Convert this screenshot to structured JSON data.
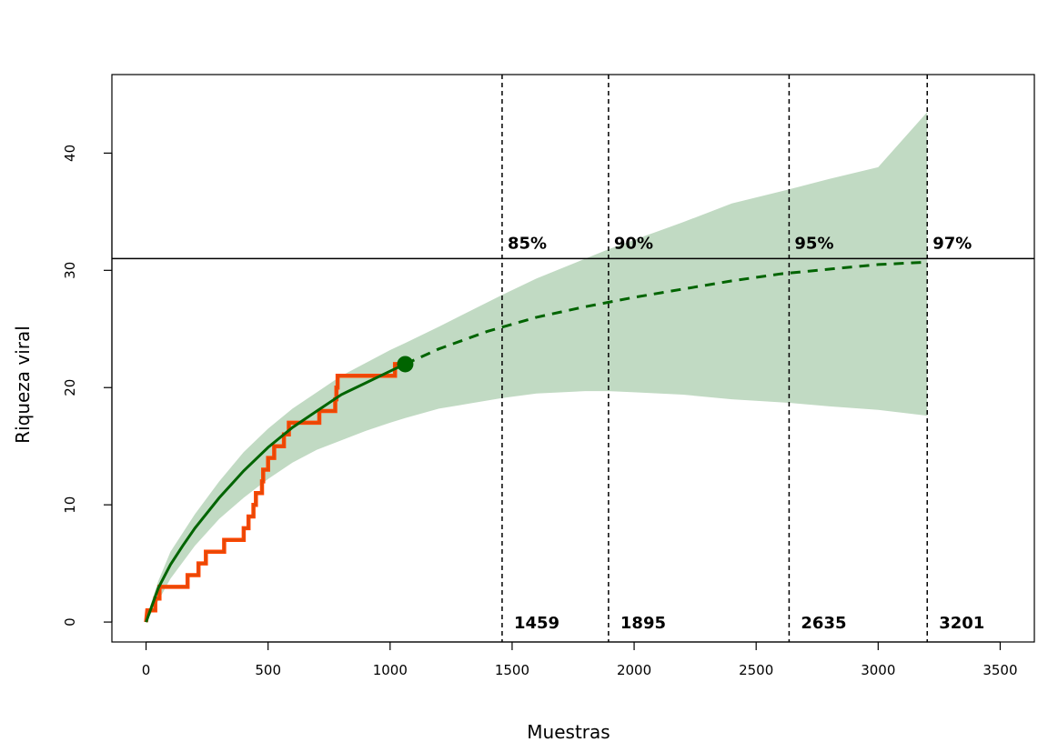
{
  "chart_data": {
    "type": "line",
    "title": "",
    "xlabel": "Muestras",
    "ylabel": "Riqueza viral",
    "xlim": [
      -140,
      3640
    ],
    "ylim": [
      -1.7,
      46.7
    ],
    "x_ticks": [
      0,
      500,
      1000,
      1500,
      2000,
      2500,
      3000,
      3500
    ],
    "y_ticks": [
      0,
      10,
      20,
      30,
      40
    ],
    "grid": false,
    "legend": "none",
    "colors": {
      "band": "#c1dac3",
      "curve": "#006400",
      "observed": "#ff4500",
      "observed_inner": "#c45010"
    },
    "observed_steps": [
      [
        0,
        0
      ],
      [
        5,
        1
      ],
      [
        38,
        1
      ],
      [
        38,
        2
      ],
      [
        55,
        2
      ],
      [
        55,
        3
      ],
      [
        170,
        3
      ],
      [
        170,
        4
      ],
      [
        215,
        4
      ],
      [
        215,
        5
      ],
      [
        245,
        5
      ],
      [
        245,
        6
      ],
      [
        320,
        6
      ],
      [
        320,
        7
      ],
      [
        400,
        7
      ],
      [
        400,
        8
      ],
      [
        420,
        8
      ],
      [
        420,
        9
      ],
      [
        440,
        9
      ],
      [
        440,
        10
      ],
      [
        450,
        10
      ],
      [
        450,
        11
      ],
      [
        475,
        11
      ],
      [
        475,
        12
      ],
      [
        480,
        12
      ],
      [
        480,
        13
      ],
      [
        500,
        13
      ],
      [
        500,
        14
      ],
      [
        525,
        14
      ],
      [
        525,
        15
      ],
      [
        565,
        15
      ],
      [
        565,
        16
      ],
      [
        585,
        16
      ],
      [
        585,
        17
      ],
      [
        710,
        17
      ],
      [
        710,
        18
      ],
      [
        775,
        18
      ],
      [
        775,
        19
      ],
      [
        780,
        19
      ],
      [
        780,
        20
      ],
      [
        785,
        20
      ],
      [
        785,
        21
      ],
      [
        1020,
        21
      ],
      [
        1020,
        22
      ],
      [
        1062,
        22
      ]
    ],
    "interpolated_curve": [
      [
        0,
        0
      ],
      [
        50,
        2.9
      ],
      [
        100,
        4.9
      ],
      [
        150,
        6.5
      ],
      [
        200,
        8.0
      ],
      [
        300,
        10.6
      ],
      [
        400,
        12.9
      ],
      [
        500,
        14.9
      ],
      [
        600,
        16.6
      ],
      [
        700,
        18.0
      ],
      [
        800,
        19.4
      ],
      [
        900,
        20.4
      ],
      [
        1000,
        21.4
      ],
      [
        1062,
        22.0
      ]
    ],
    "extrapolated_curve": [
      [
        1062,
        22.0
      ],
      [
        1200,
        23.3
      ],
      [
        1400,
        24.8
      ],
      [
        1600,
        26.0
      ],
      [
        1800,
        26.9
      ],
      [
        2000,
        27.7
      ],
      [
        2200,
        28.4
      ],
      [
        2400,
        29.1
      ],
      [
        2600,
        29.7
      ],
      [
        2800,
        30.1
      ],
      [
        3000,
        30.5
      ],
      [
        3201,
        30.7
      ]
    ],
    "band_upper": [
      [
        0,
        0.3
      ],
      [
        50,
        3.5
      ],
      [
        100,
        6.0
      ],
      [
        200,
        9.2
      ],
      [
        300,
        12.0
      ],
      [
        400,
        14.5
      ],
      [
        500,
        16.5
      ],
      [
        600,
        18.2
      ],
      [
        700,
        19.6
      ],
      [
        800,
        21.0
      ],
      [
        1000,
        23.2
      ],
      [
        1062,
        23.8
      ],
      [
        1200,
        25.2
      ],
      [
        1459,
        27.9
      ],
      [
        1600,
        29.3
      ],
      [
        1895,
        31.8
      ],
      [
        2000,
        32.6
      ],
      [
        2200,
        34.1
      ],
      [
        2400,
        35.7
      ],
      [
        2635,
        36.9
      ],
      [
        2800,
        37.8
      ],
      [
        3000,
        38.8
      ],
      [
        3201,
        43.5
      ]
    ],
    "band_lower": [
      [
        0,
        0
      ],
      [
        50,
        1.8
      ],
      [
        100,
        3.7
      ],
      [
        200,
        6.5
      ],
      [
        300,
        8.8
      ],
      [
        400,
        10.6
      ],
      [
        500,
        12.2
      ],
      [
        600,
        13.6
      ],
      [
        700,
        14.7
      ],
      [
        800,
        15.5
      ],
      [
        900,
        16.3
      ],
      [
        1000,
        17.0
      ],
      [
        1062,
        17.4
      ],
      [
        1200,
        18.2
      ],
      [
        1459,
        19.1
      ],
      [
        1600,
        19.5
      ],
      [
        1800,
        19.7
      ],
      [
        1895,
        19.7
      ],
      [
        2000,
        19.6
      ],
      [
        2200,
        19.4
      ],
      [
        2400,
        19.0
      ],
      [
        2635,
        18.7
      ],
      [
        2800,
        18.4
      ],
      [
        3000,
        18.1
      ],
      [
        3201,
        17.6
      ]
    ],
    "endpoint": {
      "x": 1062,
      "y": 22
    },
    "reference_line_y": 31,
    "annotations": [
      {
        "x": 1459,
        "coverage": "85%",
        "samples": "1459"
      },
      {
        "x": 1895,
        "coverage": "90%",
        "samples": "1895"
      },
      {
        "x": 2635,
        "coverage": "95%",
        "samples": "2635"
      },
      {
        "x": 3201,
        "coverage": "97%",
        "samples": "3201"
      }
    ]
  }
}
